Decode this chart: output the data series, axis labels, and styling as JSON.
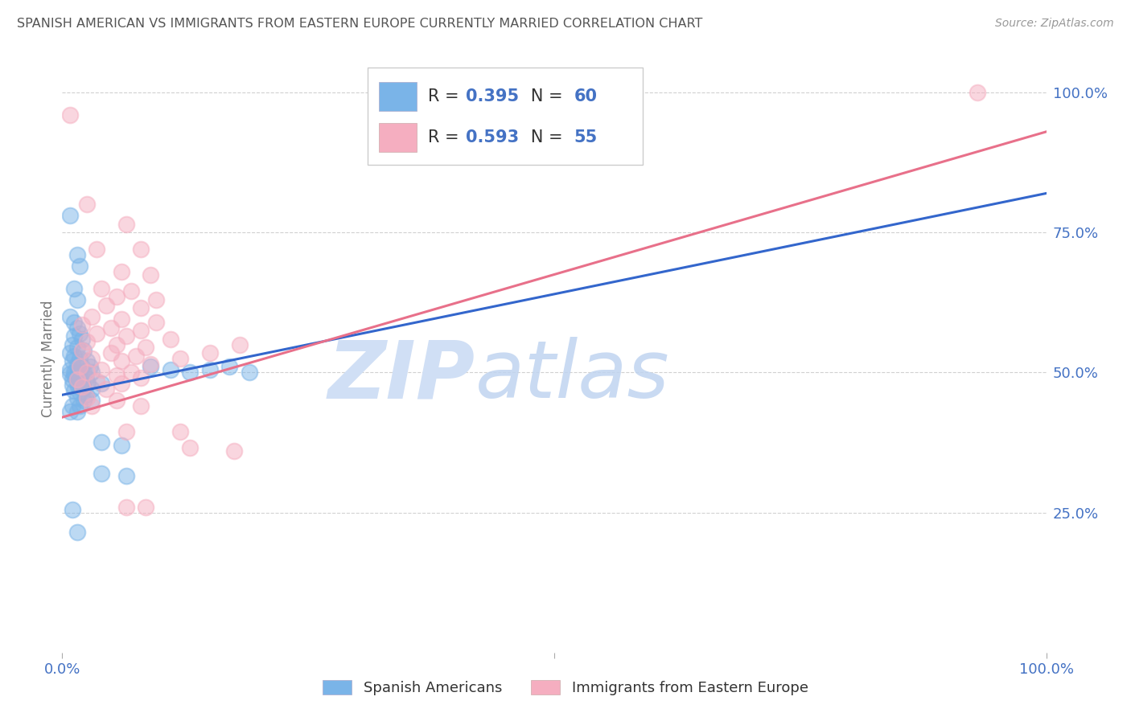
{
  "title": "SPANISH AMERICAN VS IMMIGRANTS FROM EASTERN EUROPE CURRENTLY MARRIED CORRELATION CHART",
  "source": "Source: ZipAtlas.com",
  "ylabel": "Currently Married",
  "xlim": [
    0.0,
    1.0
  ],
  "ylim": [
    0.0,
    1.05
  ],
  "ytick_positions": [
    0.25,
    0.5,
    0.75,
    1.0
  ],
  "ytick_labels": [
    "25.0%",
    "50.0%",
    "75.0%",
    "100.0%"
  ],
  "xtick_positions": [
    0.0,
    0.5,
    1.0
  ],
  "xtick_labels": [
    "0.0%",
    "",
    "100.0%"
  ],
  "legend_bottom_labels": [
    "Spanish Americans",
    "Immigrants from Eastern Europe"
  ],
  "blue_color": "#7ab4e8",
  "pink_color": "#f5aec0",
  "blue_line_color": "#3366cc",
  "pink_line_color": "#e8708a",
  "watermark_zip_color": "#d0dff5",
  "watermark_atlas_color": "#c0d4f0",
  "tick_label_color": "#4472c4",
  "title_color": "#555555",
  "source_color": "#999999",
  "grid_color": "#cccccc",
  "legend_R_N_color": "#4472c4",
  "blue_scatter": [
    [
      0.008,
      0.78
    ],
    [
      0.015,
      0.71
    ],
    [
      0.018,
      0.69
    ],
    [
      0.012,
      0.65
    ],
    [
      0.015,
      0.63
    ],
    [
      0.008,
      0.6
    ],
    [
      0.012,
      0.59
    ],
    [
      0.015,
      0.58
    ],
    [
      0.018,
      0.57
    ],
    [
      0.012,
      0.565
    ],
    [
      0.02,
      0.56
    ],
    [
      0.01,
      0.55
    ],
    [
      0.015,
      0.545
    ],
    [
      0.022,
      0.54
    ],
    [
      0.008,
      0.535
    ],
    [
      0.012,
      0.53
    ],
    [
      0.018,
      0.525
    ],
    [
      0.025,
      0.52
    ],
    [
      0.01,
      0.52
    ],
    [
      0.015,
      0.515
    ],
    [
      0.02,
      0.51
    ],
    [
      0.028,
      0.51
    ],
    [
      0.008,
      0.505
    ],
    [
      0.012,
      0.5
    ],
    [
      0.016,
      0.5
    ],
    [
      0.022,
      0.5
    ],
    [
      0.03,
      0.5
    ],
    [
      0.008,
      0.498
    ],
    [
      0.012,
      0.495
    ],
    [
      0.018,
      0.492
    ],
    [
      0.024,
      0.49
    ],
    [
      0.01,
      0.488
    ],
    [
      0.015,
      0.485
    ],
    [
      0.02,
      0.482
    ],
    [
      0.026,
      0.48
    ],
    [
      0.01,
      0.478
    ],
    [
      0.016,
      0.475
    ],
    [
      0.022,
      0.472
    ],
    [
      0.03,
      0.47
    ],
    [
      0.012,
      0.468
    ],
    [
      0.018,
      0.465
    ],
    [
      0.024,
      0.46
    ],
    [
      0.015,
      0.455
    ],
    [
      0.022,
      0.45
    ],
    [
      0.03,
      0.45
    ],
    [
      0.01,
      0.44
    ],
    [
      0.018,
      0.44
    ],
    [
      0.008,
      0.43
    ],
    [
      0.015,
      0.43
    ],
    [
      0.09,
      0.51
    ],
    [
      0.11,
      0.505
    ],
    [
      0.13,
      0.5
    ],
    [
      0.15,
      0.505
    ],
    [
      0.17,
      0.51
    ],
    [
      0.19,
      0.5
    ],
    [
      0.04,
      0.48
    ],
    [
      0.04,
      0.375
    ],
    [
      0.06,
      0.37
    ],
    [
      0.04,
      0.32
    ],
    [
      0.065,
      0.315
    ],
    [
      0.01,
      0.255
    ],
    [
      0.015,
      0.215
    ]
  ],
  "pink_scatter": [
    [
      0.008,
      0.96
    ],
    [
      0.025,
      0.8
    ],
    [
      0.065,
      0.765
    ],
    [
      0.035,
      0.72
    ],
    [
      0.08,
      0.72
    ],
    [
      0.06,
      0.68
    ],
    [
      0.09,
      0.675
    ],
    [
      0.04,
      0.65
    ],
    [
      0.07,
      0.645
    ],
    [
      0.055,
      0.635
    ],
    [
      0.095,
      0.63
    ],
    [
      0.045,
      0.62
    ],
    [
      0.08,
      0.615
    ],
    [
      0.03,
      0.6
    ],
    [
      0.06,
      0.595
    ],
    [
      0.095,
      0.59
    ],
    [
      0.02,
      0.585
    ],
    [
      0.05,
      0.58
    ],
    [
      0.08,
      0.575
    ],
    [
      0.035,
      0.57
    ],
    [
      0.065,
      0.565
    ],
    [
      0.11,
      0.56
    ],
    [
      0.025,
      0.555
    ],
    [
      0.055,
      0.55
    ],
    [
      0.085,
      0.545
    ],
    [
      0.02,
      0.54
    ],
    [
      0.05,
      0.535
    ],
    [
      0.075,
      0.53
    ],
    [
      0.03,
      0.525
    ],
    [
      0.06,
      0.52
    ],
    [
      0.09,
      0.515
    ],
    [
      0.018,
      0.51
    ],
    [
      0.04,
      0.505
    ],
    [
      0.07,
      0.5
    ],
    [
      0.025,
      0.5
    ],
    [
      0.055,
      0.495
    ],
    [
      0.08,
      0.49
    ],
    [
      0.015,
      0.488
    ],
    [
      0.035,
      0.485
    ],
    [
      0.06,
      0.48
    ],
    [
      0.02,
      0.475
    ],
    [
      0.045,
      0.47
    ],
    [
      0.025,
      0.455
    ],
    [
      0.055,
      0.45
    ],
    [
      0.03,
      0.44
    ],
    [
      0.08,
      0.44
    ],
    [
      0.12,
      0.525
    ],
    [
      0.15,
      0.535
    ],
    [
      0.18,
      0.55
    ],
    [
      0.065,
      0.395
    ],
    [
      0.12,
      0.395
    ],
    [
      0.13,
      0.365
    ],
    [
      0.175,
      0.36
    ],
    [
      0.065,
      0.26
    ],
    [
      0.085,
      0.26
    ],
    [
      0.93,
      1.0
    ]
  ],
  "blue_line": {
    "x0": 0.0,
    "y0": 0.46,
    "x1": 1.0,
    "y1": 0.82
  },
  "pink_line": {
    "x0": 0.0,
    "y0": 0.42,
    "x1": 1.0,
    "y1": 0.93
  }
}
